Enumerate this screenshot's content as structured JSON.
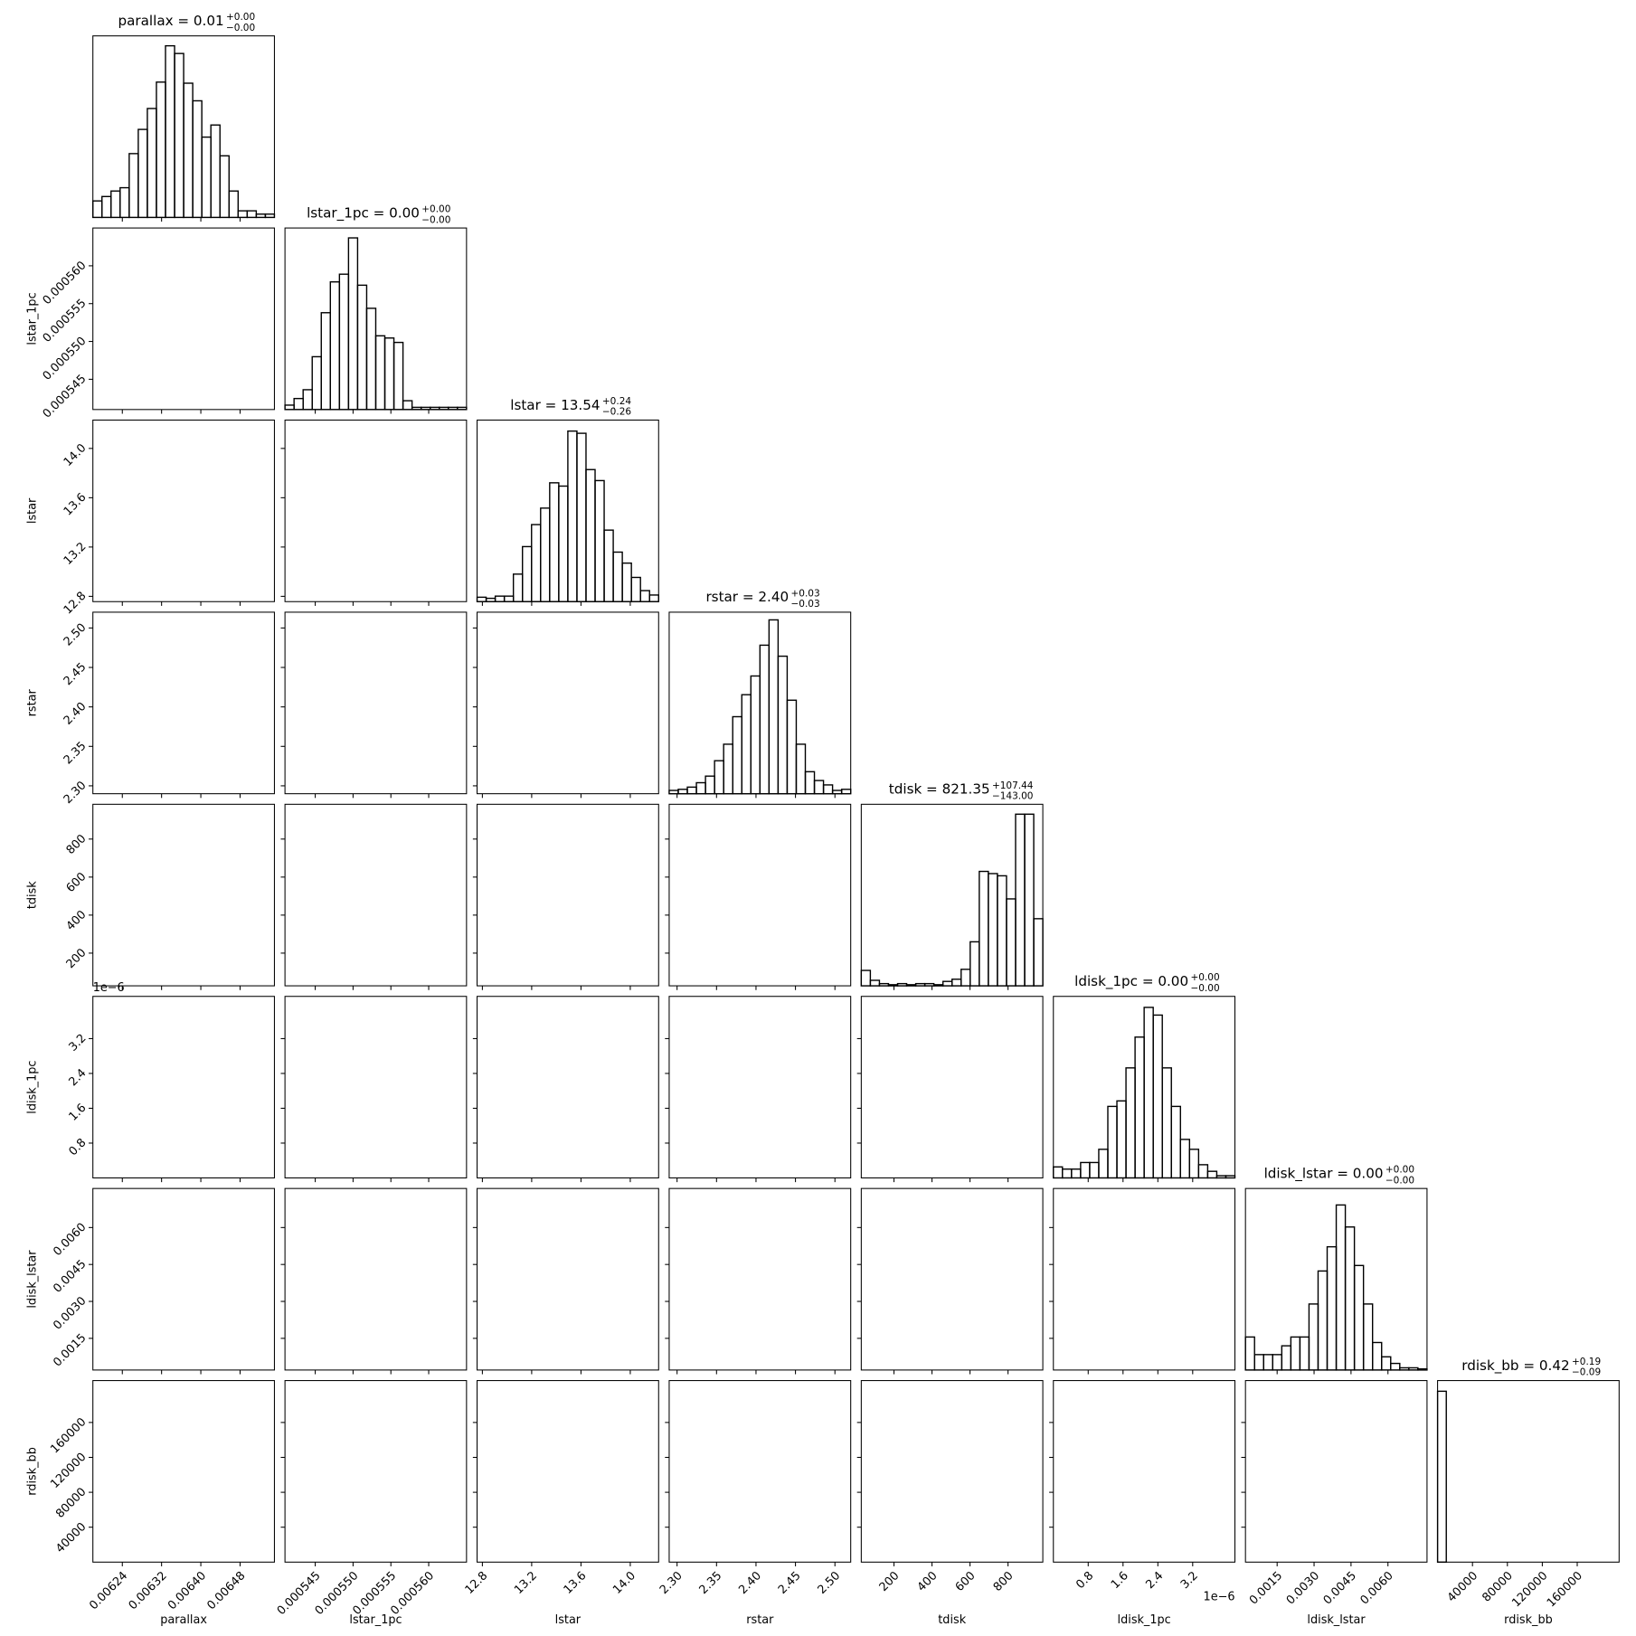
{
  "chart_data": [
    {
      "type": "histogram",
      "title": "parallax = 0.01",
      "title_sup": "+0.00",
      "title_sub": "−0.00",
      "xlabel": "parallax",
      "color": "#000000",
      "xlim": [
        0.00618,
        0.00655
      ],
      "xticks": [
        0.00624,
        0.00632,
        {
          "value": 0.0064,
          "label": "0.00640"
        },
        0.00648
      ],
      "bins": [
        0.00618,
        0.0061985,
        0.006217,
        0.0062355,
        0.006254,
        0.0062725,
        0.006291,
        0.0063095,
        0.006328,
        0.0063465,
        0.006365,
        0.0063835,
        0.006402,
        0.0064205,
        0.006439,
        0.0064575,
        0.006476,
        0.0064945,
        0.006513,
        0.0065315,
        0.00655
      ],
      "values": [
        15,
        19,
        24,
        27,
        58,
        80,
        99,
        123,
        156,
        149,
        122,
        106,
        73,
        84,
        56,
        24,
        6,
        6,
        3,
        3
      ],
      "ylim": [
        0,
        165
      ]
    },
    {
      "type": "histogram",
      "title": "lstar_1pc = 0.00",
      "title_sup": "+0.00",
      "title_sub": "−0.00",
      "xlabel": "lstar_1pc",
      "color": "#000000",
      "xlim": [
        0.000541,
        0.000565
      ],
      "xticks": [
        0.000545,
        {
          "value": 0.00055,
          "label": "0.000550"
        },
        0.000555,
        {
          "value": 0.00056,
          "label": "0.000560"
        }
      ],
      "bins": [
        0.000541,
        0.0005422,
        0.0005434,
        0.0005446,
        0.0005458,
        0.000547,
        0.0005482,
        0.0005494,
        0.0005506,
        0.0005518,
        0.000553,
        0.0005542,
        0.0005554,
        0.0005566,
        0.0005578,
        0.000559,
        0.0005602,
        0.0005614,
        0.0005626,
        0.0005638,
        0.000565
      ],
      "values": [
        4,
        10,
        18,
        48,
        88,
        116,
        123,
        156,
        113,
        92,
        67,
        65,
        61,
        8,
        2,
        2,
        2,
        2,
        2,
        2
      ],
      "ylim": [
        0,
        165
      ]
    },
    {
      "type": "histogram",
      "title": "lstar = 13.54",
      "title_sup": "+0.24",
      "title_sub": "−0.26",
      "xlabel": "lstar",
      "color": "#000000",
      "xlim": [
        12.757,
        14.23
      ],
      "xticks": [
        12.8,
        13.2,
        13.6,
        {
          "value": 14,
          "label": "14.0"
        }
      ],
      "bins": [
        12.757,
        12.8307,
        12.9043,
        12.978,
        13.0516,
        13.1253,
        13.1989,
        13.2726,
        13.3462,
        13.4199,
        13.4935,
        13.5672,
        13.6408,
        13.7145,
        13.7881,
        13.8618,
        13.9354,
        14.0091,
        14.0827,
        14.1564,
        14.23
      ],
      "values": [
        4,
        3,
        5,
        5,
        25,
        50,
        70,
        85,
        108,
        105,
        155,
        153,
        120,
        110,
        65,
        45,
        35,
        22,
        10,
        6
      ],
      "ylim": [
        0,
        165
      ]
    },
    {
      "type": "histogram",
      "title": "rstar = 2.40",
      "title_sup": "+0.03",
      "title_sub": "−0.03",
      "xlabel": "rstar",
      "color": "#000000",
      "xlim": [
        2.29,
        2.52
      ],
      "xticks": [
        {
          "value": 2.3,
          "label": "2.30"
        },
        2.35,
        {
          "value": 2.4,
          "label": "2.40"
        },
        2.45,
        {
          "value": 2.5,
          "label": "2.50"
        }
      ],
      "bins": [
        2.29,
        2.3015,
        2.313,
        2.3245,
        2.336,
        2.3475,
        2.359,
        2.3705,
        2.382,
        2.3935,
        2.405,
        2.4165,
        2.428,
        2.4395,
        2.451,
        2.4625,
        2.474,
        2.4855,
        2.497,
        2.5085,
        2.52
      ],
      "values": [
        3,
        4,
        6,
        10,
        16,
        30,
        45,
        70,
        90,
        107,
        135,
        158,
        125,
        85,
        45,
        20,
        12,
        8,
        3,
        4
      ],
      "ylim": [
        0,
        165
      ]
    },
    {
      "type": "histogram",
      "title": "tdisk = 821.35",
      "title_sup": "+107.44",
      "title_sub": "−143.00",
      "xlabel": "tdisk",
      "color": "#000000",
      "xlim": [
        28,
        983
      ],
      "xticks": [
        200,
        400,
        600,
        800
      ],
      "bins": [
        28,
        75.75,
        123.5,
        171.25,
        219,
        266.75,
        314.5,
        362.25,
        410,
        457.75,
        505.5,
        553.25,
        601,
        648.75,
        696.5,
        744.25,
        792,
        839.75,
        887.5,
        935.25,
        983
      ],
      "values": [
        14,
        5,
        2,
        1,
        2,
        1,
        2,
        2,
        1,
        4,
        6,
        15,
        40,
        104,
        102,
        100,
        79,
        156,
        156,
        61
      ],
      "ylim": [
        0,
        165
      ]
    },
    {
      "type": "histogram",
      "title": "ldisk_1pc = 0.00",
      "title_sup": "+0.00",
      "title_sub": "−0.00",
      "xlabel": "ldisk_1pc",
      "offset_label": "1e−6",
      "color": "#000000",
      "xlim": [
        0,
        4.17
      ],
      "xticks": [
        0.8,
        1.6,
        2.4,
        3.2
      ],
      "bins": [
        0,
        0.2085,
        0.417,
        0.6255,
        0.834,
        1.0425,
        1.251,
        1.4595,
        1.668,
        1.8765,
        2.085,
        2.2935,
        2.502,
        2.7105,
        2.919,
        3.1275,
        3.336,
        3.5445,
        3.753,
        3.9615,
        4.17
      ],
      "values": [
        10,
        8,
        8,
        14,
        14,
        26,
        65,
        70,
        100,
        128,
        155,
        148,
        100,
        65,
        35,
        26,
        12,
        6,
        2,
        2
      ],
      "ylim": [
        0,
        165
      ]
    },
    {
      "type": "histogram",
      "title": "ldisk_lstar = 0.00",
      "title_sup": "+0.00",
      "title_sub": "−0.00",
      "xlabel": "ldisk_lstar",
      "color": "#000000",
      "xlim": [
        0.000214,
        0.007586
      ],
      "xticks": [
        0.0015,
        {
          "value": 0.003,
          "label": "0.0030"
        },
        0.0045,
        {
          "value": 0.006,
          "label": "0.0060"
        }
      ],
      "bins": [
        0.000214,
        0.0005826,
        0.0009512,
        0.0013198,
        0.0016884,
        0.002057,
        0.0024256,
        0.0027942,
        0.0031628,
        0.0035314,
        0.0039,
        0.0042686,
        0.0046372,
        0.0050058,
        0.0053744,
        0.005743,
        0.0061116,
        0.0064802,
        0.0068488,
        0.0072174,
        0.007586
      ],
      "values": [
        30,
        14,
        14,
        14,
        22,
        30,
        30,
        60,
        90,
        112,
        150,
        130,
        95,
        60,
        25,
        12,
        6,
        2,
        2,
        1
      ],
      "ylim": [
        0,
        165
      ]
    },
    {
      "type": "histogram",
      "title": "rdisk_bb = 0.42",
      "title_sup": "+0.19",
      "title_sub": "−0.09",
      "xlabel": "rdisk_bb",
      "color": "#000000",
      "xlim": [
        0,
        208000
      ],
      "xticks": [
        40000,
        80000,
        120000,
        160000
      ],
      "bins": [
        0,
        10000,
        20000,
        30000,
        40000,
        50000,
        60000,
        70000,
        80000,
        90000,
        100000,
        110000,
        120000,
        130000,
        140000,
        150000,
        160000,
        170000,
        180000,
        190000,
        200000
      ],
      "values": [
        160,
        0,
        0,
        0,
        0,
        0,
        0,
        0,
        0,
        0,
        0,
        0,
        0,
        0,
        0,
        0,
        0,
        0,
        0,
        0
      ],
      "ylim": [
        0,
        170
      ]
    }
  ]
}
